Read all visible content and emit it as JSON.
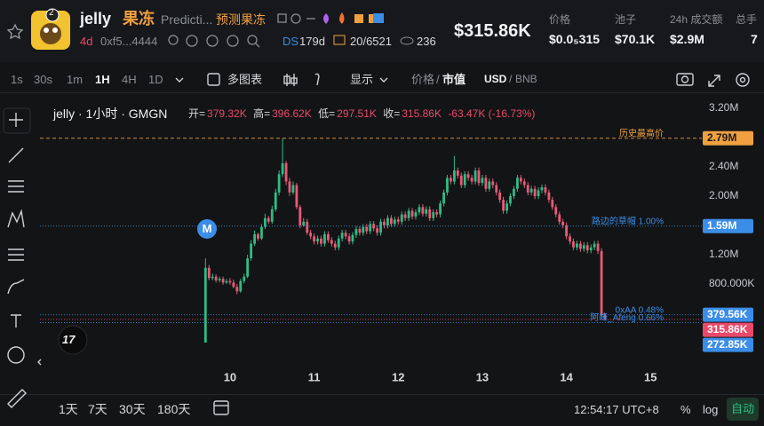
{
  "header": {
    "avatar_badge": "2",
    "name": "jelly",
    "name_cn": "果冻",
    "desc": "Predicti...",
    "desc_cn": "预测果冻",
    "age": "4d",
    "address": "0xf5...4444",
    "ds": "DS",
    "ds_age": "179d",
    "holders": "20/6521",
    "views": "236",
    "market_cap": "$315.86K",
    "stats": [
      {
        "label": "价格",
        "value": "$0.0₅315"
      },
      {
        "label": "池子",
        "value": "$70.1K"
      },
      {
        "label": "24h 成交额",
        "value": "$2.9M"
      },
      {
        "label": "总手",
        "value": "7"
      }
    ]
  },
  "toolbar": {
    "intervals": [
      "1s",
      "30s",
      "1m",
      "1H",
      "4H",
      "1D"
    ],
    "multi": "多图表",
    "display": "显示",
    "price": "价格",
    "separator": "/",
    "mcap": "市值",
    "usd": "USD",
    "bnb": "BNB"
  },
  "legend": {
    "symbol": "jelly · 1小时 · GMGN",
    "open_label": "开=",
    "open": "379.32K",
    "high_label": "高=",
    "high": "396.62K",
    "low_label": "低=",
    "low": "297.51K",
    "close_label": "收=",
    "close": "315.86K",
    "change": "-63.47K (-16.73%)"
  },
  "marker": "M",
  "footer": {
    "ranges": [
      "1天",
      "7天",
      "30天",
      "180天"
    ],
    "time": "12:54:17 UTC+8",
    "percent": "%",
    "log": "log",
    "auto": "自动"
  },
  "chart_data": {
    "type": "candlestick",
    "grid": false,
    "up_color": "#2ebd85",
    "down_color": "#ea5a78",
    "x": [
      9.708,
      9.75,
      9.792,
      9.833,
      9.875,
      9.917,
      9.958,
      10,
      10.042,
      10.083,
      10.125,
      10.167,
      10.208,
      10.25,
      10.292,
      10.333,
      10.375,
      10.417,
      10.458,
      10.5,
      10.542,
      10.583,
      10.625,
      10.667,
      10.708,
      10.75,
      10.792,
      10.833,
      10.875,
      10.917,
      10.958,
      11,
      11.042,
      11.083,
      11.125,
      11.167,
      11.208,
      11.25,
      11.292,
      11.333,
      11.375,
      11.417,
      11.458,
      11.5,
      11.542,
      11.583,
      11.625,
      11.667,
      11.708,
      11.75,
      11.792,
      11.833,
      11.875,
      11.917,
      11.958,
      12,
      12.042,
      12.083,
      12.125,
      12.167,
      12.208,
      12.25,
      12.292,
      12.333,
      12.375,
      12.417,
      12.458,
      12.5,
      12.542,
      12.583,
      12.625,
      12.667,
      12.708,
      12.75,
      12.792,
      12.833,
      12.875,
      12.917,
      12.958,
      13,
      13.042,
      13.083,
      13.125,
      13.167,
      13.208,
      13.25,
      13.292,
      13.333,
      13.375,
      13.417,
      13.458,
      13.5,
      13.542,
      13.583,
      13.625,
      13.667,
      13.708,
      13.75,
      13.792,
      13.833,
      13.875,
      13.917,
      13.958,
      14,
      14.042,
      14.083,
      14.125,
      14.167,
      14.208,
      14.25,
      14.292,
      14.333,
      14.375,
      14.417,
      14.458
    ],
    "open": [
      0,
      1020,
      880,
      900,
      850,
      870,
      820,
      840,
      820,
      760,
      700,
      840,
      900,
      1150,
      1350,
      1480,
      1420,
      1580,
      1700,
      1650,
      1820,
      2050,
      2300,
      2450,
      2200,
      2050,
      2150,
      1850,
      1600,
      1650,
      1500,
      1450,
      1380,
      1420,
      1350,
      1480,
      1400,
      1350,
      1300,
      1420,
      1500,
      1450,
      1380,
      1470,
      1550,
      1500,
      1580,
      1520,
      1620,
      1560,
      1500,
      1650,
      1600,
      1700,
      1620,
      1680,
      1650,
      1750,
      1700,
      1800,
      1720,
      1780,
      1850,
      1760,
      1820,
      1700,
      1780,
      1750,
      1900,
      2050,
      2250,
      2200,
      2350,
      2280,
      2150,
      2300,
      2250,
      2200,
      2350,
      2180,
      2250,
      2100,
      2200,
      2150,
      2050,
      1950,
      1800,
      1900,
      2000,
      2100,
      2250,
      2200,
      2150,
      2050,
      2100,
      2000,
      2080,
      2120,
      2050,
      1950,
      1850,
      1750,
      1650,
      1600,
      1450,
      1380,
      1300,
      1350,
      1280,
      1330,
      1260,
      1300,
      1350,
      1250,
      379.32
    ],
    "high": [
      1150,
      1060,
      940,
      930,
      900,
      900,
      870,
      880,
      860,
      800,
      870,
      940,
      1200,
      1400,
      1530,
      1500,
      1620,
      1760,
      1730,
      1870,
      2100,
      2350,
      2790,
      2480,
      2250,
      2200,
      2180,
      1880,
      1700,
      1690,
      1540,
      1490,
      1460,
      1460,
      1520,
      1520,
      1440,
      1390,
      1460,
      1540,
      1540,
      1490,
      1510,
      1590,
      1590,
      1620,
      1620,
      1660,
      1660,
      1600,
      1690,
      1690,
      1740,
      1740,
      1720,
      1720,
      1790,
      1790,
      1840,
      1840,
      1820,
      1890,
      1890,
      1860,
      1860,
      1820,
      1820,
      1940,
      2090,
      2290,
      2290,
      2550,
      2390,
      2320,
      2340,
      2340,
      2290,
      2390,
      2390,
      2290,
      2290,
      2240,
      2240,
      2190,
      2090,
      1990,
      1940,
      2040,
      2140,
      2290,
      2290,
      2240,
      2190,
      2140,
      2140,
      2120,
      2160,
      2160,
      2090,
      1990,
      1890,
      1790,
      1690,
      1640,
      1490,
      1420,
      1390,
      1390,
      1370,
      1370,
      1340,
      1390,
      1390,
      1290,
      396.62
    ],
    "low": [
      0,
      850,
      850,
      820,
      820,
      790,
      800,
      790,
      740,
      660,
      680,
      810,
      880,
      1120,
      1320,
      1390,
      1400,
      1550,
      1620,
      1620,
      1790,
      2010,
      2260,
      2150,
      2000,
      2020,
      1820,
      1560,
      1580,
      1470,
      1410,
      1340,
      1340,
      1310,
      1310,
      1360,
      1310,
      1260,
      1260,
      1380,
      1410,
      1340,
      1340,
      1430,
      1460,
      1460,
      1480,
      1480,
      1520,
      1460,
      1460,
      1560,
      1560,
      1580,
      1580,
      1610,
      1610,
      1660,
      1660,
      1680,
      1680,
      1740,
      1720,
      1720,
      1660,
      1660,
      1710,
      1710,
      1860,
      2010,
      2160,
      2160,
      2240,
      2110,
      2110,
      2210,
      2160,
      2160,
      2140,
      2140,
      2060,
      2060,
      2110,
      2010,
      1910,
      1760,
      1760,
      1860,
      1960,
      2060,
      2160,
      2110,
      2010,
      2010,
      1960,
      1960,
      2040,
      2010,
      1910,
      1810,
      1710,
      1610,
      1560,
      1410,
      1340,
      1260,
      1260,
      1240,
      1240,
      1220,
      1220,
      1260,
      1210,
      360,
      297.51
    ],
    "close": [
      1020,
      880,
      900,
      850,
      870,
      820,
      840,
      820,
      760,
      700,
      840,
      900,
      1150,
      1350,
      1480,
      1420,
      1580,
      1700,
      1650,
      1820,
      2050,
      2300,
      2450,
      2200,
      2050,
      2150,
      1850,
      1600,
      1650,
      1500,
      1450,
      1380,
      1420,
      1350,
      1480,
      1400,
      1350,
      1300,
      1420,
      1500,
      1450,
      1380,
      1470,
      1550,
      1500,
      1580,
      1520,
      1620,
      1560,
      1500,
      1650,
      1600,
      1700,
      1620,
      1680,
      1650,
      1750,
      1700,
      1800,
      1720,
      1780,
      1850,
      1760,
      1820,
      1700,
      1780,
      1750,
      1900,
      2050,
      2250,
      2200,
      2350,
      2280,
      2150,
      2300,
      2250,
      2200,
      2350,
      2180,
      2250,
      2100,
      2200,
      2150,
      2050,
      1950,
      1800,
      1900,
      2000,
      2100,
      2250,
      2200,
      2150,
      2050,
      2100,
      2000,
      2080,
      2120,
      2050,
      1950,
      1850,
      1750,
      1650,
      1600,
      1450,
      1380,
      1300,
      1350,
      1280,
      1330,
      1260,
      1300,
      1350,
      1250,
      379.32,
      315.86
    ],
    "xlim": [
      7.74,
      15.61
    ],
    "xticks": [
      10,
      11,
      12,
      13,
      14,
      15
    ],
    "ylim": [
      -655,
      3321
    ],
    "yticks": [
      {
        "value": 3200,
        "label": "3.20M"
      },
      {
        "value": 2400,
        "label": "2.40M"
      },
      {
        "value": 2000,
        "label": "2.00M"
      },
      {
        "value": 1200,
        "label": "1.20M"
      },
      {
        "value": 800,
        "label": "800.000K"
      },
      0
    ],
    "price_lines": [
      {
        "name": "历史最高价",
        "value": 2790,
        "label": "2.79M",
        "color": "#f0a040",
        "style": "dashed"
      },
      {
        "name": "路边的草帽 1.00%",
        "value": 1590,
        "label": "1.59M",
        "color": "#3b8de8",
        "style": "dotted"
      },
      {
        "name": "0xAA 0.48%",
        "value": 379.56,
        "label": "379.56K",
        "color": "#3b8de8",
        "style": "dotted"
      },
      {
        "value": 315.86,
        "label": "315.86K",
        "color": "#ea4a6a",
        "style": "dotted"
      },
      {
        "name": "阿峰_Afeng 0.66%",
        "value": 272.85,
        "label": "272.85K",
        "color": "#3b8de8",
        "style": "dotted"
      }
    ]
  }
}
